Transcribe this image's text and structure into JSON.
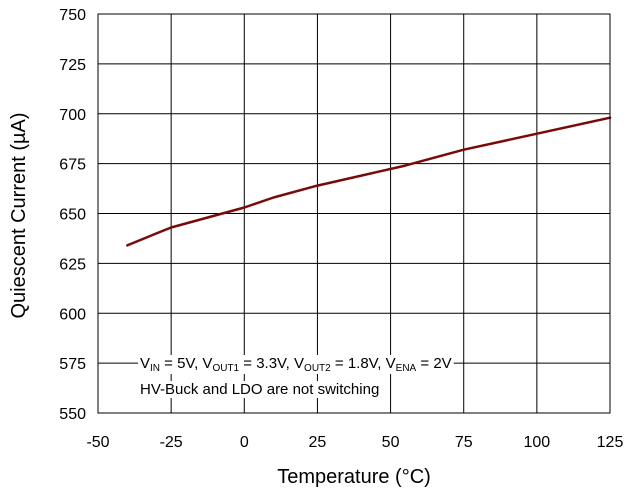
{
  "chart_data": {
    "type": "line",
    "title": "",
    "xlabel": "Temperature (°C)",
    "ylabel": "Quiescent Current  (µA)",
    "xlim": [
      -50,
      125
    ],
    "ylim": [
      550,
      750
    ],
    "xticks": [
      -50,
      -25,
      0,
      25,
      50,
      75,
      100,
      125
    ],
    "yticks": [
      550,
      575,
      600,
      625,
      650,
      675,
      700,
      725,
      750
    ],
    "grid": true,
    "legend": "none",
    "series": [
      {
        "color": "#7a0a0a",
        "x": [
          -40,
          -35,
          -30,
          -25,
          -20,
          -15,
          -10,
          -5,
          0,
          10,
          25,
          40,
          55,
          75,
          100,
          125
        ],
        "y": [
          634,
          637,
          640,
          643,
          645,
          647,
          649,
          651,
          653,
          658,
          664,
          669,
          674,
          682,
          690,
          698
        ]
      }
    ],
    "annotation": {
      "line1": [
        {
          "text": "V",
          "sub": "IN",
          "rest": " = 5V, "
        },
        {
          "text": "V",
          "sub": "OUT1",
          "rest": " = 3.3V, "
        },
        {
          "text": "V",
          "sub": "OUT2",
          "rest": " = 1.8V, "
        },
        {
          "text": "V",
          "sub": "ENA",
          "rest": " = 2V"
        }
      ],
      "line2": "HV-Buck and LDO are not switching"
    }
  }
}
